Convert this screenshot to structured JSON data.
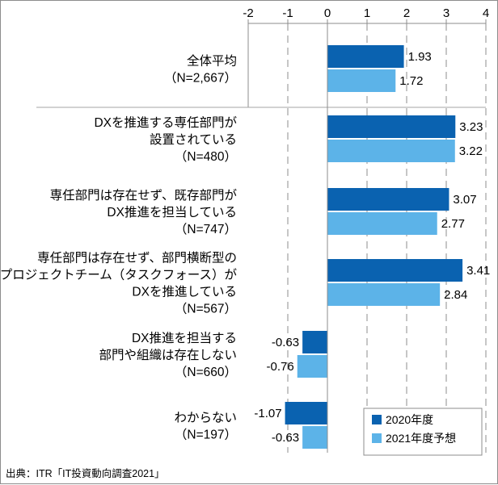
{
  "chart_data": {
    "type": "bar",
    "orientation": "horizontal",
    "title": "",
    "xlabel": "",
    "ylabel": "",
    "xlim": [
      -2,
      4
    ],
    "x_ticks": [
      "-2",
      "-1",
      "0",
      "1",
      "2",
      "3",
      "4"
    ],
    "grid": true,
    "legend_position": "bottom-right",
    "categories": [
      {
        "lines": [
          "全体平均",
          "（N=2,667）"
        ]
      },
      {
        "lines": [
          "DXを推進する専任部門が",
          "設置されている",
          "（N=480）"
        ]
      },
      {
        "lines": [
          "専任部門は存在せず、既存部門が",
          "DX推進を担当している",
          "（N=747）"
        ]
      },
      {
        "lines": [
          "専任部門は存在せず、部門横断型の",
          "プロジェクトチーム（タスクフォース）が",
          "DXを推進している",
          "（N=567）"
        ]
      },
      {
        "lines": [
          "DX推進を担当する",
          "部門や組織は存在しない",
          "（N=660）"
        ]
      },
      {
        "lines": [
          "わからない",
          "（N=197）"
        ]
      }
    ],
    "series": [
      {
        "name": "2020年度",
        "color": "#0a62b0",
        "values": [
          1.93,
          3.23,
          3.07,
          3.41,
          -0.63,
          -1.07
        ],
        "value_labels": [
          "1.93",
          "3.23",
          "3.07",
          "3.41",
          "-0.63",
          "-1.07"
        ]
      },
      {
        "name": "2021年度予想",
        "color": "#5cb3e8",
        "values": [
          1.72,
          3.22,
          2.77,
          2.84,
          -0.76,
          -0.63
        ],
        "value_labels": [
          "1.72",
          "3.22",
          "2.77",
          "2.84",
          "-0.76",
          "-0.63"
        ]
      }
    ]
  },
  "source": "出典：ITR「IT投資動向調査2021」"
}
